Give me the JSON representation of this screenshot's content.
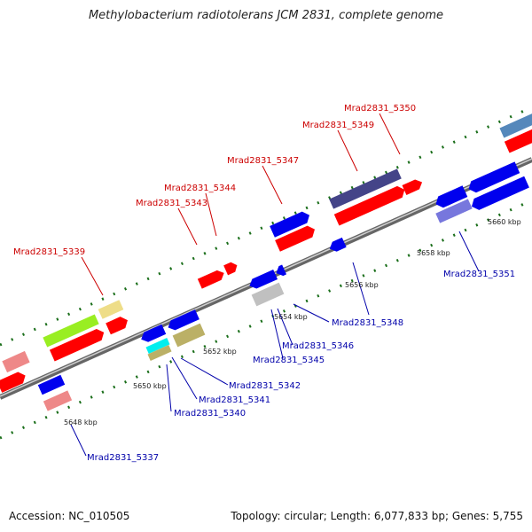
{
  "title": "Methylobacterium radiotolerans JCM 2831, complete genome",
  "footer": {
    "accession": "Accession: NC_010505",
    "summary": "Topology: circular; Length: 6,077,833 bp; Genes: 5,755"
  },
  "strand_colors": {
    "forward_label": "#cc0000",
    "reverse_label": "#0000aa",
    "backbone": "#888888",
    "tick": "#1a6e1a"
  },
  "kbp_labels": [
    "5648 kbp",
    "5650 kbp",
    "5652 kbp",
    "5654 kbp",
    "5656 kbp",
    "5658 kbp",
    "5660 kbp"
  ],
  "forward_labels": [
    "Mrad2831_5339",
    "Mrad2831_5343",
    "Mrad2831_5344",
    "Mrad2831_5347",
    "Mrad2831_5349",
    "Mrad2831_5350"
  ],
  "reverse_labels": [
    "Mrad2831_5337",
    "Mrad2831_5340",
    "Mrad2831_5341",
    "Mrad2831_5342",
    "Mrad2831_5345",
    "Mrad2831_5346",
    "Mrad2831_5348",
    "Mrad2831_5351"
  ],
  "feature_colors": {
    "red": "#ff0000",
    "blue": "#0000ee",
    "pink": "#ee8888",
    "lime": "#99ee22",
    "khaki": "#eedd88",
    "olive": "#bbb066",
    "cyan": "#00eeee",
    "silver": "#c0c0c0",
    "navy_purple": "#444488",
    "lavender": "#7777dd",
    "steel": "#5588bb"
  }
}
